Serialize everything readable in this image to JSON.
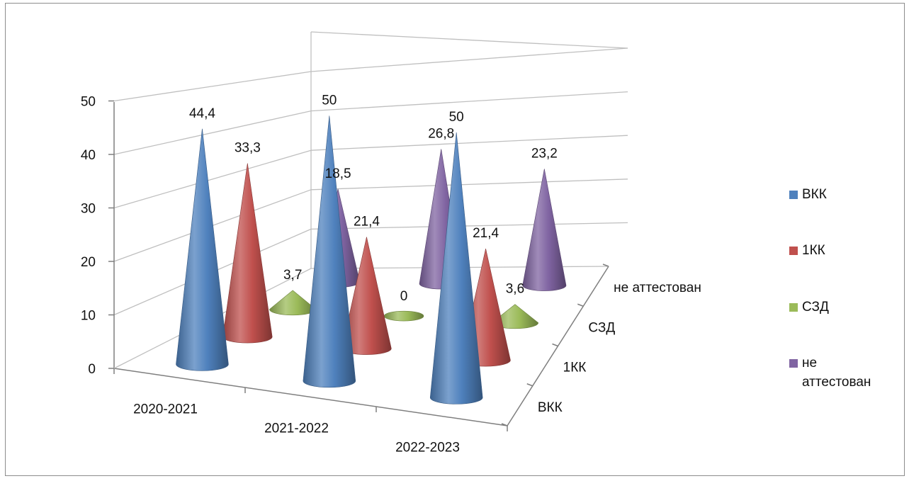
{
  "chart_data": {
    "type": "bar",
    "subtype": "3d-cone",
    "title": "",
    "categories": [
      "2020-2021",
      "2021-2022",
      "2022-2023"
    ],
    "series": [
      {
        "name": "ВКК",
        "values": [
          44.4,
          50,
          50
        ],
        "labels": [
          "44,4",
          "50",
          "50"
        ],
        "color": "#4F81BD"
      },
      {
        "name": "1КК",
        "values": [
          33.3,
          21.4,
          21.4
        ],
        "labels": [
          "33,3",
          "21,4",
          "21,4"
        ],
        "color": "#C0504D"
      },
      {
        "name": "СЗД",
        "values": [
          3.7,
          0,
          3.6
        ],
        "labels": [
          "3,7",
          "0",
          "3,6"
        ],
        "color": "#9BBB59"
      },
      {
        "name": "не аттестован",
        "values": [
          18.5,
          26.8,
          23.2
        ],
        "labels": [
          "18,5",
          "26,8",
          "23,2"
        ],
        "color": "#8064A2"
      }
    ],
    "depth_labels": [
      "ВКК",
      "1КК",
      "СЗД",
      "не аттестован"
    ],
    "y_ticks": [
      "0",
      "10",
      "20",
      "30",
      "40",
      "50"
    ],
    "ylim": [
      0,
      50
    ],
    "grid": true,
    "legend": {
      "position": "right",
      "entries": [
        "ВКК",
        "1КК",
        "СЗД",
        "не аттестован"
      ],
      "wrapped_last": [
        "не",
        "аттестован"
      ]
    }
  }
}
